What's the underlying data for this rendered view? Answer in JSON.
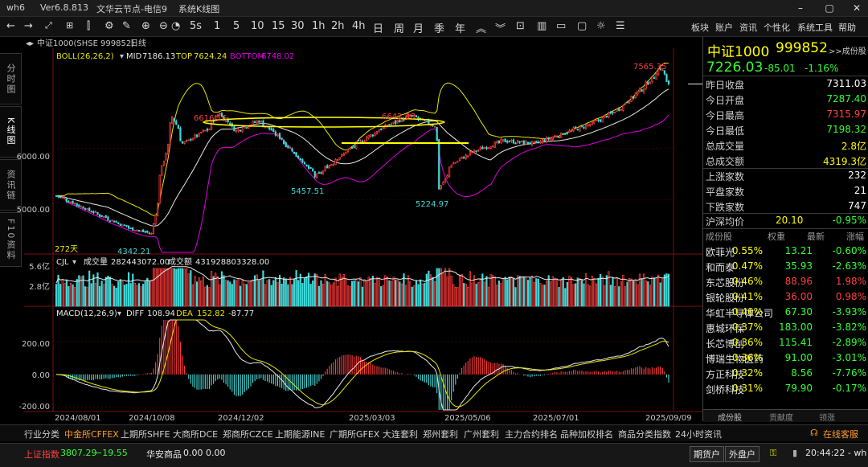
{
  "titlebar": {
    "app": "wh6",
    "version": "Ver6.8.813",
    "node": "文华云节点-电信9",
    "window_name": "系统K线图"
  },
  "toolbar": {
    "periods": [
      "1",
      "5",
      "10",
      "15",
      "30",
      "1h",
      "2h",
      "4h",
      "日",
      "周",
      "月",
      "季",
      "年"
    ],
    "period_icon": "5s",
    "right_menu": [
      "板块",
      "账户",
      "资讯",
      "个性化",
      "系统工具",
      "帮助"
    ]
  },
  "left_tabs": [
    "分时图",
    "K线图",
    "资讯链",
    "F10资料"
  ],
  "chart_header": {
    "instrument": "中证1000(SHSE 999852)",
    "period": "日线"
  },
  "boll": {
    "label": "BOLL(26,26,2)",
    "mid_label": "MID",
    "mid": "7186.13",
    "top_label": "TOP",
    "top": "7624.24",
    "bottom_label": "BOTTOM",
    "bottom": "6748.02"
  },
  "vol_header": {
    "label": "CJL",
    "vol_label": "成交量",
    "vol": "282443072.00",
    "amt_label": "成交额",
    "amt": "431928803328.00"
  },
  "macd_header": {
    "label": "MACD(12,26,9)",
    "diff_label": "DIFF",
    "diff": "108.94",
    "dea_label": "DEA",
    "dea": "152.82",
    "macd": "-87.77"
  },
  "annotations": {
    "days": "272天",
    "low1": "4342.21",
    "high1": "6616.16",
    "low2": "5457.51",
    "high2": "6642.86",
    "low3": "5224.97",
    "high3": "7565.35"
  },
  "colors": {
    "up": "#ff3b3b",
    "down": "#41d8d8",
    "boll_mid": "#e8e8e8",
    "boll_top": "#e6e600",
    "boll_bottom": "#e000e0",
    "diff": "#e8e8e8",
    "dea": "#e6e600",
    "ellipse": "#ffff00"
  },
  "chart_data": {
    "type": "candlestick",
    "price_axis": {
      "ticks": [
        "6000.00",
        "5000.00"
      ],
      "range": [
        4200,
        7700
      ]
    },
    "volume_axis": {
      "ticks": [
        "5.6亿",
        "2.8亿"
      ]
    },
    "macd_axis": {
      "ticks": [
        "200.00",
        "0.00",
        "-200.00"
      ],
      "range": [
        -215,
        330
      ]
    },
    "date_labels": [
      "2024/08/01",
      "2024/10/08",
      "2024/12/02",
      "2025/03/03",
      "2025/05/06",
      "2025/07/01",
      "2025/09/09"
    ],
    "anchors": [
      [
        "2024-07-22",
        5080
      ],
      [
        "2024-08-01",
        4950
      ],
      [
        "2024-08-20",
        4700
      ],
      [
        "2024-09-10",
        4440
      ],
      [
        "2024-09-24",
        4342
      ],
      [
        "2024-09-30",
        5500
      ],
      [
        "2024-10-08",
        6616
      ],
      [
        "2024-10-15",
        6100
      ],
      [
        "2024-11-01",
        6380
      ],
      [
        "2024-11-08",
        6700
      ],
      [
        "2024-11-20",
        6350
      ],
      [
        "2024-12-05",
        6540
      ],
      [
        "2024-12-18",
        6250
      ],
      [
        "2025-01-02",
        5800
      ],
      [
        "2025-01-13",
        5457
      ],
      [
        "2025-01-27",
        5800
      ],
      [
        "2025-02-10",
        6100
      ],
      [
        "2025-02-28",
        6420
      ],
      [
        "2025-03-18",
        6640
      ],
      [
        "2025-04-03",
        6450
      ],
      [
        "2025-04-07",
        5225
      ],
      [
        "2025-04-15",
        5700
      ],
      [
        "2025-04-30",
        5950
      ],
      [
        "2025-05-20",
        6150
      ],
      [
        "2025-06-10",
        6100
      ],
      [
        "2025-06-30",
        6300
      ],
      [
        "2025-07-20",
        6500
      ],
      [
        "2025-08-05",
        6750
      ],
      [
        "2025-08-25",
        7250
      ],
      [
        "2025-09-03",
        7565
      ],
      [
        "2025-09-09",
        7226
      ]
    ]
  },
  "quote": {
    "name": "中证1000",
    "code": "999852",
    "bookmark": ">>成份股",
    "last": "7226.03",
    "change": "-85.01",
    "pct": "-1.16%",
    "rows": [
      {
        "k": "昨日收盘",
        "v": "7311.03",
        "c": "#ffffff"
      },
      {
        "k": "今日开盘",
        "v": "7287.40",
        "c": "#33ff33"
      },
      {
        "k": "今日最高",
        "v": "7315.97",
        "c": "#ff4040"
      },
      {
        "k": "今日最低",
        "v": "7198.32",
        "c": "#33ff33"
      },
      {
        "k": "总成交量",
        "v": "2.8亿",
        "c": "#ffff00"
      },
      {
        "k": "总成交额",
        "v": "4319.3亿",
        "c": "#ffff00"
      }
    ],
    "breadth": [
      {
        "k": "上涨家数",
        "v": "232"
      },
      {
        "k": "平盘家数",
        "v": "21"
      },
      {
        "k": "下跌家数",
        "v": "747"
      }
    ],
    "hs": {
      "k": "沪深均价",
      "v": "20.10",
      "pct": "-0.95%"
    }
  },
  "constituents": {
    "headers": [
      "成份股",
      "权重",
      "最新",
      "涨幅"
    ],
    "rows": [
      {
        "name": "欧菲光",
        "w": "0.55%",
        "p": "13.21",
        "c": "-0.60%"
      },
      {
        "name": "和而泰",
        "w": "0.47%",
        "p": "35.93",
        "c": "-2.63%"
      },
      {
        "name": "东芯股份",
        "w": "0.46%",
        "p": "88.96",
        "c": "1.98%"
      },
      {
        "name": "银轮股份",
        "w": "0.41%",
        "p": "36.00",
        "c": "0.98%"
      },
      {
        "name": "华虹半导体公司",
        "w": "0.40%",
        "p": "67.30",
        "c": "-3.93%"
      },
      {
        "name": "惠城环保",
        "w": "0.37%",
        "p": "183.00",
        "c": "-3.82%"
      },
      {
        "name": "长芯博创",
        "w": "0.36%",
        "p": "115.41",
        "c": "-2.89%"
      },
      {
        "name": "博瑞生物医药",
        "w": "0.36%",
        "p": "91.00",
        "c": "-3.01%"
      },
      {
        "name": "方正科技",
        "w": "0.32%",
        "p": "8.56",
        "c": "-7.76%"
      },
      {
        "name": "剑桥科技",
        "w": "0.31%",
        "p": "79.90",
        "c": "-0.17%"
      }
    ],
    "tabs": [
      "成份股",
      "贡献度",
      "领涨"
    ]
  },
  "bottom_tabs": [
    "行业分类",
    "中金所CFFEX",
    "上期所SHFE",
    "大商所DCE",
    "郑商所CZCE",
    "上期能源INE",
    "广期所GFEX",
    "大连套利",
    "郑州套利",
    "广州套利",
    "主力合约排名",
    "品种加权排名",
    "商品分类指数",
    "24小时资讯"
  ],
  "bottom_right": "在线客服",
  "status": {
    "idx_name": "上证指数",
    "idx_val": "3807.29",
    "idx_chg": "−19.55",
    "comm_name": "华安商品",
    "comm_a": "0.00",
    "comm_b": "0.00",
    "btn1": "期货户",
    "btn2": "外盘户",
    "time": "20:44:22 - wh"
  }
}
